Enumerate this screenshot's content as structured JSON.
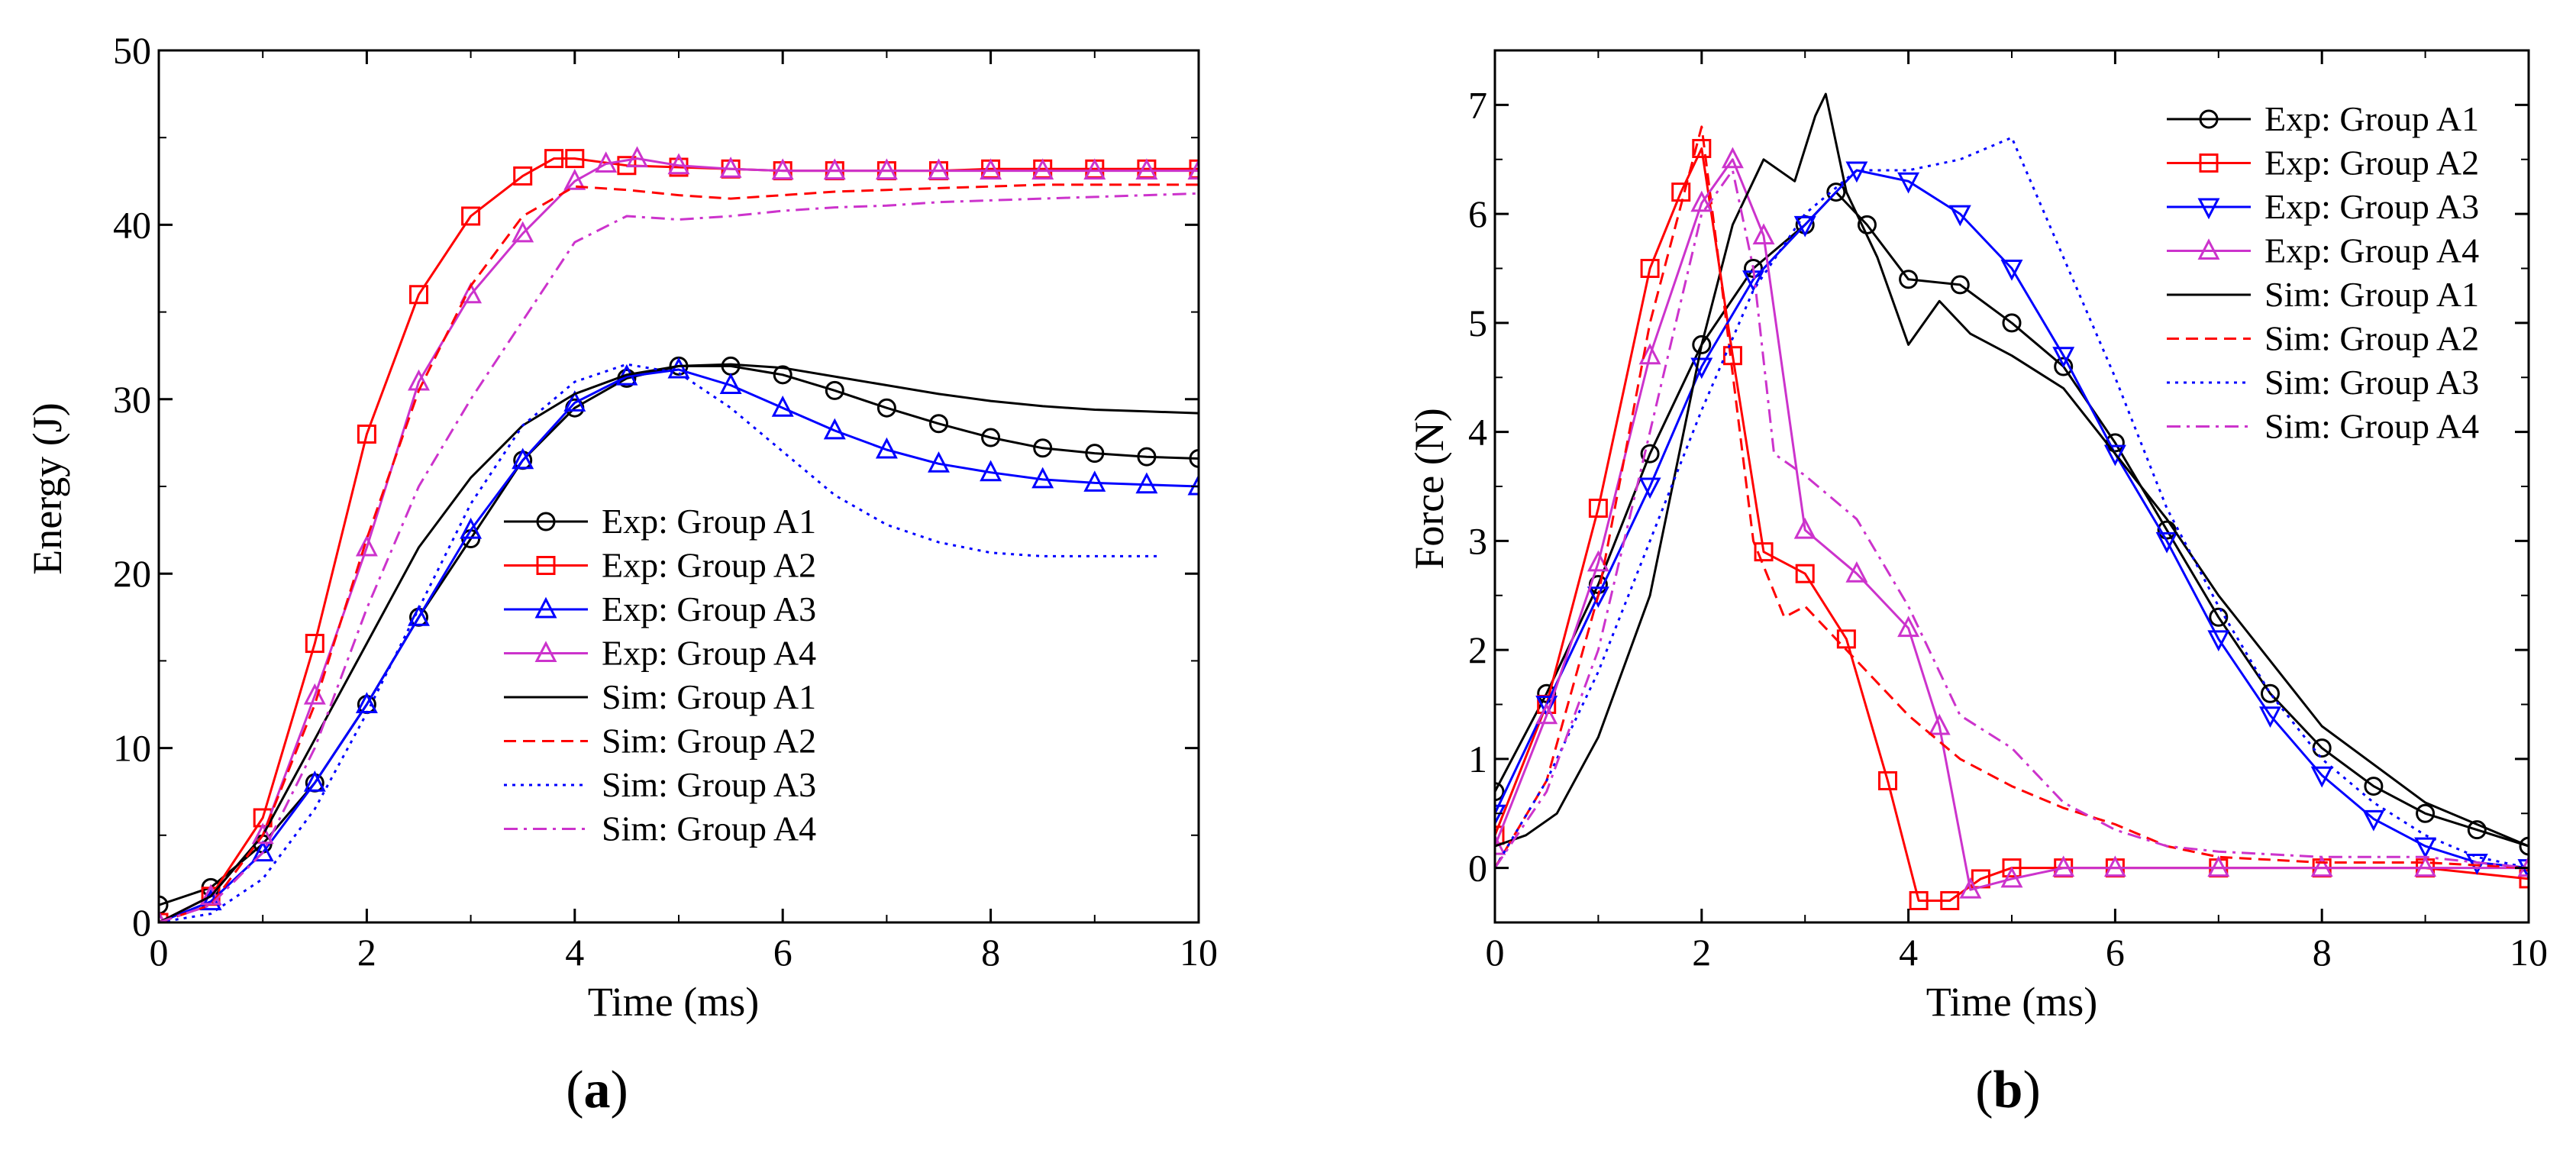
{
  "chart_data": [
    {
      "type": "line",
      "panel_label": "a",
      "xlabel": "Time (ms)",
      "ylabel": "Energy (J)",
      "xlim": [
        0,
        10
      ],
      "ylim": [
        0,
        50
      ],
      "xticks": [
        0,
        2,
        4,
        6,
        8,
        10
      ],
      "yticks": [
        0,
        10,
        20,
        30,
        40,
        50
      ],
      "legend_position": "center",
      "series": [
        {
          "name": "Exp: Group A1",
          "color": "#000000",
          "dash": "solid",
          "marker": "circle",
          "x": [
            0,
            0.5,
            1,
            1.5,
            2,
            2.5,
            3,
            3.5,
            4,
            4.5,
            5,
            5.5,
            6,
            6.5,
            7,
            7.5,
            8,
            8.5,
            9,
            9.5,
            10
          ],
          "y": [
            1,
            2,
            4.5,
            8,
            12.5,
            17.5,
            22,
            26.5,
            29.5,
            31.2,
            31.9,
            31.9,
            31.4,
            30.5,
            29.5,
            28.6,
            27.8,
            27.2,
            26.9,
            26.7,
            26.6
          ]
        },
        {
          "name": "Exp: Group A2",
          "color": "#ff0000",
          "dash": "solid",
          "marker": "square",
          "x": [
            0,
            0.5,
            1,
            1.5,
            2,
            2.5,
            3,
            3.5,
            3.8,
            4,
            4.5,
            5,
            5.5,
            6,
            6.5,
            7,
            7.5,
            8,
            8.5,
            9,
            9.5,
            10
          ],
          "y": [
            0,
            1.5,
            6,
            16,
            28,
            36,
            40.5,
            42.8,
            43.8,
            43.8,
            43.4,
            43.3,
            43.2,
            43.1,
            43.1,
            43.1,
            43.1,
            43.2,
            43.2,
            43.2,
            43.2,
            43.2
          ]
        },
        {
          "name": "Exp: Group A3",
          "color": "#0000ff",
          "dash": "solid",
          "marker": "triangle-up",
          "x": [
            0,
            0.5,
            1,
            1.5,
            2,
            2.5,
            3,
            3.5,
            4,
            4.5,
            5,
            5.5,
            6,
            6.5,
            7,
            7.5,
            8,
            8.5,
            9,
            9.5,
            10
          ],
          "y": [
            0,
            1.2,
            4,
            8,
            12.5,
            17.5,
            22.5,
            26.5,
            29.8,
            31.3,
            31.7,
            30.8,
            29.5,
            28.2,
            27.1,
            26.3,
            25.8,
            25.4,
            25.2,
            25.1,
            25.0
          ]
        },
        {
          "name": "Exp: Group A4",
          "color": "#cc33cc",
          "dash": "solid",
          "marker": "triangle-up",
          "x": [
            0,
            0.5,
            1,
            1.5,
            2,
            2.5,
            3,
            3.5,
            4,
            4.3,
            4.6,
            5,
            5.5,
            6,
            6.5,
            7,
            7.5,
            8,
            8.5,
            9,
            9.5,
            10
          ],
          "y": [
            0,
            1.5,
            5,
            13,
            21.5,
            31,
            36,
            39.5,
            42.5,
            43.5,
            43.8,
            43.4,
            43.2,
            43.1,
            43.1,
            43.1,
            43.1,
            43.1,
            43.1,
            43.1,
            43.1,
            43.1
          ]
        },
        {
          "name": "Sim: Group A1",
          "color": "#000000",
          "dash": "solid",
          "marker": "none",
          "x": [
            0,
            0.5,
            1,
            1.5,
            2,
            2.5,
            3,
            3.5,
            4,
            4.5,
            5,
            5.5,
            6,
            6.5,
            7,
            7.5,
            8,
            8.5,
            9,
            9.5,
            10
          ],
          "y": [
            0,
            1.5,
            5,
            10.5,
            16,
            21.5,
            25.5,
            28.5,
            30.3,
            31.4,
            31.9,
            32,
            31.8,
            31.3,
            30.8,
            30.3,
            29.9,
            29.6,
            29.4,
            29.3,
            29.2
          ]
        },
        {
          "name": "Sim: Group A2",
          "color": "#ff0000",
          "dash": "dash",
          "marker": "none",
          "x": [
            0,
            0.5,
            1,
            1.5,
            2,
            2.5,
            3,
            3.5,
            4,
            4.5,
            5,
            5.5,
            6,
            6.5,
            7,
            7.5,
            8,
            8.5,
            9,
            9.5,
            10
          ],
          "y": [
            0,
            1,
            5,
            12.5,
            22,
            30.5,
            36.5,
            40.5,
            42.2,
            42,
            41.7,
            41.5,
            41.7,
            41.9,
            42,
            42.1,
            42.2,
            42.3,
            42.3,
            42.3,
            42.3
          ]
        },
        {
          "name": "Sim: Group A3",
          "color": "#0000ff",
          "dash": "dot",
          "marker": "none",
          "x": [
            0,
            0.5,
            1,
            1.5,
            2,
            2.5,
            3,
            3.5,
            4,
            4.5,
            5,
            5.5,
            6,
            6.5,
            7,
            7.5,
            8,
            8.5,
            9,
            9.6
          ],
          "y": [
            0,
            0.5,
            2.5,
            6.5,
            12,
            18,
            24,
            28.5,
            31,
            32,
            31.5,
            29.5,
            27,
            24.5,
            22.8,
            21.8,
            21.2,
            21,
            21,
            21
          ]
        },
        {
          "name": "Sim: Group A4",
          "color": "#cc33cc",
          "dash": "dashdot",
          "marker": "none",
          "x": [
            0,
            0.5,
            1,
            1.5,
            2,
            2.5,
            3,
            3.5,
            4,
            4.5,
            5,
            5.5,
            6,
            6.5,
            7,
            7.5,
            8,
            8.5,
            9,
            9.5,
            10
          ],
          "y": [
            0,
            1,
            4,
            10,
            18,
            25,
            30,
            34.5,
            39,
            40.5,
            40.3,
            40.5,
            40.8,
            41,
            41.1,
            41.3,
            41.4,
            41.5,
            41.6,
            41.7,
            41.8
          ]
        }
      ]
    },
    {
      "type": "line",
      "panel_label": "b",
      "xlabel": "Time (ms)",
      "ylabel": "Force (N)",
      "xlim": [
        0,
        10
      ],
      "ylim": [
        -0.5,
        7.5
      ],
      "xticks": [
        0,
        2,
        4,
        6,
        8,
        10
      ],
      "yticks": [
        0,
        1,
        2,
        3,
        4,
        5,
        6,
        7
      ],
      "legend_position": "top-right",
      "series": [
        {
          "name": "Exp: Group A1",
          "color": "#000000",
          "dash": "solid",
          "marker": "circle",
          "x": [
            0,
            0.5,
            1,
            1.5,
            2,
            2.5,
            3,
            3.3,
            3.6,
            4,
            4.5,
            5,
            5.5,
            6,
            6.5,
            7,
            7.5,
            8,
            8.5,
            9,
            9.5,
            10
          ],
          "y": [
            0.7,
            1.6,
            2.6,
            3.8,
            4.8,
            5.5,
            5.9,
            6.2,
            5.9,
            5.4,
            5.35,
            5.0,
            4.6,
            3.9,
            3.1,
            2.3,
            1.6,
            1.1,
            0.75,
            0.5,
            0.35,
            0.2
          ]
        },
        {
          "name": "Exp: Group A2",
          "color": "#ff0000",
          "dash": "solid",
          "marker": "square",
          "x": [
            0,
            0.5,
            1,
            1.5,
            1.8,
            2,
            2.3,
            2.6,
            3,
            3.4,
            3.8,
            4.1,
            4.4,
            4.7,
            5,
            5.5,
            6,
            7,
            8,
            9,
            10
          ],
          "y": [
            0.3,
            1.5,
            3.3,
            5.5,
            6.2,
            6.6,
            4.7,
            2.9,
            2.7,
            2.1,
            0.8,
            -0.3,
            -0.3,
            -0.1,
            0,
            0,
            0,
            0,
            0,
            0,
            -0.1
          ]
        },
        {
          "name": "Exp: Group A3",
          "color": "#0000ff",
          "dash": "solid",
          "marker": "triangle-down",
          "x": [
            0,
            0.5,
            1,
            1.5,
            2,
            2.5,
            3,
            3.5,
            4,
            4.5,
            5,
            5.5,
            6,
            6.5,
            7,
            7.5,
            8,
            8.5,
            9,
            9.5,
            10
          ],
          "y": [
            0.5,
            1.5,
            2.5,
            3.5,
            4.6,
            5.4,
            5.9,
            6.4,
            6.3,
            6.0,
            5.5,
            4.7,
            3.8,
            3.0,
            2.1,
            1.4,
            0.85,
            0.45,
            0.2,
            0.05,
            0
          ]
        },
        {
          "name": "Exp: Group A4",
          "color": "#cc33cc",
          "dash": "solid",
          "marker": "triangle-up",
          "x": [
            0,
            0.5,
            1,
            1.5,
            2,
            2.3,
            2.6,
            3,
            3.5,
            4,
            4.3,
            4.6,
            5,
            5.5,
            6,
            7,
            8,
            9,
            10
          ],
          "y": [
            0.2,
            1.4,
            2.8,
            4.7,
            6.1,
            6.5,
            5.8,
            3.1,
            2.7,
            2.2,
            1.3,
            -0.2,
            -0.1,
            0,
            0,
            0,
            0,
            0,
            0
          ]
        },
        {
          "name": "Sim: Group A1",
          "color": "#000000",
          "dash": "solid",
          "marker": "none",
          "x": [
            0,
            0.3,
            0.6,
            1,
            1.5,
            2,
            2.3,
            2.6,
            2.9,
            3.1,
            3.2,
            3.4,
            3.7,
            4,
            4.3,
            4.6,
            5,
            5.5,
            6,
            6.5,
            7,
            8,
            9,
            10
          ],
          "y": [
            0.2,
            0.3,
            0.5,
            1.2,
            2.5,
            4.8,
            5.9,
            6.5,
            6.3,
            6.9,
            7.1,
            6.2,
            5.6,
            4.8,
            5.2,
            4.9,
            4.7,
            4.4,
            3.8,
            3.2,
            2.5,
            1.3,
            0.6,
            0.2
          ]
        },
        {
          "name": "Sim: Group A2",
          "color": "#ff0000",
          "dash": "dash",
          "marker": "none",
          "x": [
            0,
            0.5,
            1,
            1.5,
            2,
            2.2,
            2.5,
            2.8,
            3,
            3.5,
            4,
            4.5,
            5,
            5.5,
            6,
            6.5,
            7,
            8,
            9,
            10
          ],
          "y": [
            0,
            0.8,
            2.5,
            5.0,
            6.8,
            5.3,
            3.0,
            2.3,
            2.4,
            1.9,
            1.4,
            1.0,
            0.75,
            0.55,
            0.4,
            0.2,
            0.1,
            0.05,
            0.05,
            0
          ]
        },
        {
          "name": "Sim: Group A3",
          "color": "#0000ff",
          "dash": "dot",
          "marker": "none",
          "x": [
            0,
            0.5,
            1,
            1.5,
            2,
            2.5,
            3,
            3.5,
            4,
            4.5,
            5,
            5.5,
            6,
            6.5,
            7,
            7.5,
            8,
            8.5,
            9,
            9.5,
            10
          ],
          "y": [
            0,
            0.8,
            1.8,
            3.0,
            4.2,
            5.3,
            6.0,
            6.4,
            6.4,
            6.5,
            6.7,
            5.6,
            4.5,
            3.3,
            2.4,
            1.6,
            1.0,
            0.6,
            0.3,
            0.1,
            0
          ]
        },
        {
          "name": "Sim: Group A4",
          "color": "#cc33cc",
          "dash": "dashdot",
          "marker": "none",
          "x": [
            0,
            0.5,
            1,
            1.5,
            2,
            2.3,
            2.5,
            2.7,
            3,
            3.5,
            4,
            4.5,
            5,
            5.5,
            6,
            6.5,
            7,
            8,
            9,
            10
          ],
          "y": [
            0,
            0.7,
            2.0,
            4.0,
            6.0,
            6.4,
            5.5,
            3.8,
            3.6,
            3.2,
            2.4,
            1.4,
            1.1,
            0.6,
            0.35,
            0.2,
            0.15,
            0.1,
            0.1,
            0
          ]
        }
      ]
    }
  ]
}
